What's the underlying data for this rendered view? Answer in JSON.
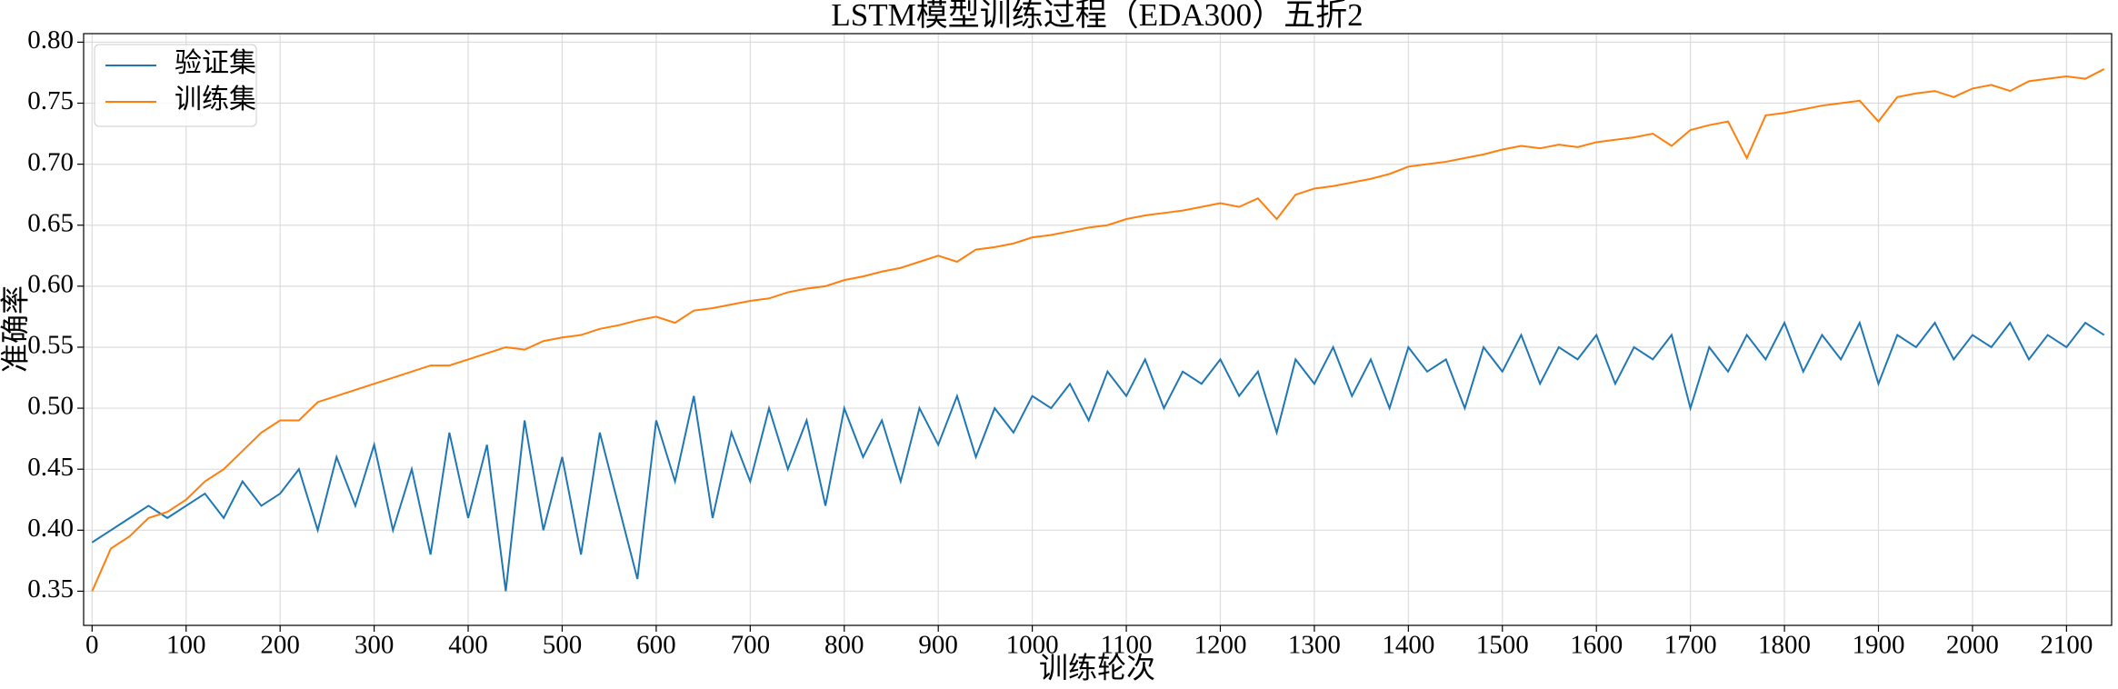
{
  "chart_data": {
    "type": "line",
    "title": "LSTM模型训练过程（EDA300）五折2",
    "x_label": "训练轮次",
    "y_label": "准确率",
    "x": [
      0,
      20,
      40,
      60,
      80,
      100,
      120,
      140,
      160,
      180,
      200,
      220,
      240,
      260,
      280,
      300,
      320,
      340,
      360,
      380,
      400,
      420,
      440,
      460,
      480,
      500,
      520,
      540,
      560,
      580,
      600,
      620,
      640,
      660,
      680,
      700,
      720,
      740,
      760,
      780,
      800,
      820,
      840,
      860,
      880,
      900,
      920,
      940,
      960,
      980,
      1000,
      1020,
      1040,
      1060,
      1080,
      1100,
      1120,
      1140,
      1160,
      1180,
      1200,
      1220,
      1240,
      1260,
      1280,
      1300,
      1320,
      1340,
      1360,
      1380,
      1400,
      1420,
      1440,
      1460,
      1480,
      1500,
      1520,
      1540,
      1560,
      1580,
      1600,
      1620,
      1640,
      1660,
      1680,
      1700,
      1720,
      1740,
      1760,
      1780,
      1800,
      1820,
      1840,
      1860,
      1880,
      1900,
      1920,
      1940,
      1960,
      1980,
      2000,
      2020,
      2040,
      2060,
      2080,
      2100,
      2120,
      2140
    ],
    "series": [
      {
        "name": "验证集",
        "color": "#1f77b4",
        "values": [
          0.39,
          0.4,
          0.41,
          0.42,
          0.41,
          0.42,
          0.43,
          0.41,
          0.44,
          0.42,
          0.43,
          0.45,
          0.4,
          0.46,
          0.42,
          0.47,
          0.4,
          0.45,
          0.38,
          0.48,
          0.41,
          0.47,
          0.35,
          0.49,
          0.4,
          0.46,
          0.38,
          0.48,
          0.42,
          0.36,
          0.49,
          0.44,
          0.51,
          0.41,
          0.48,
          0.44,
          0.5,
          0.45,
          0.49,
          0.42,
          0.5,
          0.46,
          0.49,
          0.44,
          0.5,
          0.47,
          0.51,
          0.46,
          0.5,
          0.48,
          0.51,
          0.5,
          0.52,
          0.49,
          0.53,
          0.51,
          0.54,
          0.5,
          0.53,
          0.52,
          0.54,
          0.51,
          0.53,
          0.48,
          0.54,
          0.52,
          0.55,
          0.51,
          0.54,
          0.5,
          0.55,
          0.53,
          0.54,
          0.5,
          0.55,
          0.53,
          0.56,
          0.52,
          0.55,
          0.54,
          0.56,
          0.52,
          0.55,
          0.54,
          0.56,
          0.5,
          0.55,
          0.53,
          0.56,
          0.54,
          0.57,
          0.53,
          0.56,
          0.54,
          0.57,
          0.52,
          0.56,
          0.55,
          0.57,
          0.54,
          0.56,
          0.55,
          0.57,
          0.54,
          0.56,
          0.55,
          0.57,
          0.56
        ]
      },
      {
        "name": "训练集",
        "color": "#ff7f0e",
        "values": [
          0.35,
          0.385,
          0.395,
          0.41,
          0.415,
          0.425,
          0.44,
          0.45,
          0.465,
          0.48,
          0.49,
          0.49,
          0.505,
          0.51,
          0.515,
          0.52,
          0.525,
          0.53,
          0.535,
          0.535,
          0.54,
          0.545,
          0.55,
          0.548,
          0.555,
          0.558,
          0.56,
          0.565,
          0.568,
          0.572,
          0.575,
          0.57,
          0.58,
          0.582,
          0.585,
          0.588,
          0.59,
          0.595,
          0.598,
          0.6,
          0.605,
          0.608,
          0.612,
          0.615,
          0.62,
          0.625,
          0.62,
          0.63,
          0.632,
          0.635,
          0.64,
          0.642,
          0.645,
          0.648,
          0.65,
          0.655,
          0.658,
          0.66,
          0.662,
          0.665,
          0.668,
          0.665,
          0.672,
          0.655,
          0.675,
          0.68,
          0.682,
          0.685,
          0.688,
          0.692,
          0.698,
          0.7,
          0.702,
          0.705,
          0.708,
          0.712,
          0.715,
          0.713,
          0.716,
          0.714,
          0.718,
          0.72,
          0.722,
          0.725,
          0.715,
          0.728,
          0.732,
          0.735,
          0.705,
          0.74,
          0.742,
          0.745,
          0.748,
          0.75,
          0.752,
          0.735,
          0.755,
          0.758,
          0.76,
          0.755,
          0.762,
          0.765,
          0.76,
          0.768,
          0.77,
          0.772,
          0.77,
          0.778
        ]
      }
    ],
    "xlim": [
      -9,
      2148
    ],
    "ylim": [
      0.322,
      0.807
    ],
    "xticks": [
      0,
      100,
      200,
      300,
      400,
      500,
      600,
      700,
      800,
      900,
      1000,
      1100,
      1200,
      1300,
      1400,
      1500,
      1600,
      1700,
      1800,
      1900,
      2000,
      2100
    ],
    "yticks": [
      0.35,
      {
        "value": 0.4,
        "label": "0.40"
      },
      0.45,
      {
        "value": 0.5,
        "label": "0.50"
      },
      0.55,
      {
        "value": 0.6,
        "label": "0.60"
      },
      0.65,
      {
        "value": 0.7,
        "label": "0.70"
      },
      0.75,
      {
        "value": 0.8,
        "label": "0.80"
      }
    ],
    "grid": true,
    "legend": "upper left"
  }
}
